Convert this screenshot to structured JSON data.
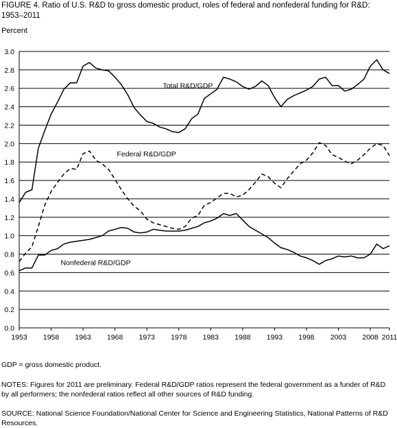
{
  "figure": {
    "title": "FIGURE 4.  Ratio of U.S. R&D to gross domestic product, roles of federal and nonfederal funding for R&D: 1953–2011",
    "ylabel": "Percent",
    "gdp_note": "GDP = gross domestic product.",
    "notes": "NOTES:  Figures for 2011 are preliminary. Federal R&D/GDP ratios represent the federal government as a funder of R&D by all performers; the nonfederal ratios reflect all other sources of R&D funding.",
    "source": "SOURCE:  National Science Foundation/National Center for Science and Engineering Statistics, National Patterns of R&D Resources."
  },
  "colors": {
    "line": "#000000",
    "grid": "#000000",
    "background": "#ffffff"
  },
  "chart_data": {
    "type": "line",
    "title": "FIGURE 4.  Ratio of U.S. R&D to gross domestic product, roles of federal and nonfederal funding for R&D: 1953–2011",
    "xlabel": "",
    "ylabel": "Percent",
    "ylim": [
      0,
      3.0
    ],
    "xlim": [
      1953,
      2011
    ],
    "yticks": [
      "0.0",
      "0.2",
      "0.4",
      "0.6",
      "0.8",
      "1.0",
      "1.2",
      "1.4",
      "1.6",
      "1.8",
      "2.0",
      "2.2",
      "2.4",
      "2.6",
      "2.8",
      "3.0"
    ],
    "xticks": [
      "1953",
      "1958",
      "1963",
      "1968",
      "1973",
      "1978",
      "1983",
      "1988",
      "1993",
      "1998",
      "2003",
      "2008",
      "2011"
    ],
    "grid": "horizontal",
    "x": [
      1953,
      1954,
      1955,
      1956,
      1957,
      1958,
      1959,
      1960,
      1961,
      1962,
      1963,
      1964,
      1965,
      1966,
      1967,
      1968,
      1969,
      1970,
      1971,
      1972,
      1973,
      1974,
      1975,
      1976,
      1977,
      1978,
      1979,
      1980,
      1981,
      1982,
      1983,
      1984,
      1985,
      1986,
      1987,
      1988,
      1989,
      1990,
      1991,
      1992,
      1993,
      1994,
      1995,
      1996,
      1997,
      1998,
      1999,
      2000,
      2001,
      2002,
      2003,
      2004,
      2005,
      2006,
      2007,
      2008,
      2009,
      2010,
      2011
    ],
    "series": [
      {
        "name": "Total R&D/GDP",
        "style": "solid",
        "values": [
          1.36,
          1.47,
          1.5,
          1.95,
          2.14,
          2.32,
          2.45,
          2.59,
          2.66,
          2.66,
          2.84,
          2.88,
          2.82,
          2.8,
          2.79,
          2.72,
          2.64,
          2.53,
          2.39,
          2.31,
          2.24,
          2.22,
          2.18,
          2.16,
          2.13,
          2.12,
          2.16,
          2.27,
          2.32,
          2.49,
          2.54,
          2.59,
          2.72,
          2.7,
          2.67,
          2.62,
          2.59,
          2.62,
          2.68,
          2.63,
          2.5,
          2.4,
          2.48,
          2.52,
          2.55,
          2.58,
          2.62,
          2.7,
          2.72,
          2.63,
          2.63,
          2.57,
          2.59,
          2.64,
          2.7,
          2.84,
          2.91,
          2.8,
          2.76
        ]
      },
      {
        "name": "Federal R&D/GDP",
        "style": "dashed",
        "values": [
          0.72,
          0.81,
          0.88,
          1.1,
          1.33,
          1.48,
          1.58,
          1.67,
          1.73,
          1.72,
          1.89,
          1.92,
          1.82,
          1.78,
          1.72,
          1.61,
          1.5,
          1.4,
          1.32,
          1.27,
          1.18,
          1.14,
          1.12,
          1.1,
          1.08,
          1.07,
          1.1,
          1.19,
          1.22,
          1.33,
          1.36,
          1.41,
          1.46,
          1.46,
          1.42,
          1.44,
          1.5,
          1.58,
          1.67,
          1.64,
          1.57,
          1.52,
          1.62,
          1.7,
          1.78,
          1.82,
          1.9,
          2.01,
          1.98,
          1.88,
          1.85,
          1.81,
          1.78,
          1.82,
          1.88,
          1.95,
          2.0,
          1.98,
          1.87
        ]
      },
      {
        "name": "Nonfederal R&D/GDP",
        "style": "solid",
        "values": [
          0.62,
          0.65,
          0.65,
          0.79,
          0.79,
          0.84,
          0.86,
          0.91,
          0.93,
          0.94,
          0.95,
          0.96,
          0.98,
          1.0,
          1.05,
          1.07,
          1.09,
          1.08,
          1.04,
          1.03,
          1.04,
          1.07,
          1.06,
          1.05,
          1.05,
          1.05,
          1.06,
          1.08,
          1.1,
          1.14,
          1.16,
          1.19,
          1.24,
          1.22,
          1.24,
          1.17,
          1.1,
          1.06,
          1.02,
          0.98,
          0.92,
          0.87,
          0.85,
          0.82,
          0.78,
          0.76,
          0.73,
          0.69,
          0.73,
          0.75,
          0.78,
          0.77,
          0.78,
          0.76,
          0.76,
          0.8,
          0.91,
          0.86,
          0.89
        ]
      }
    ]
  }
}
